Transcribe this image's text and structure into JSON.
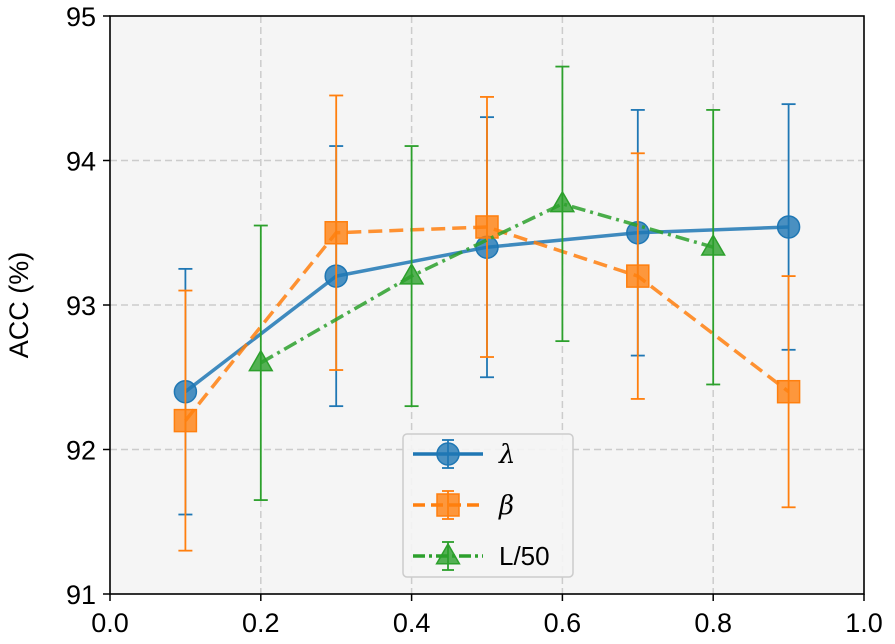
{
  "chart_data": {
    "type": "line",
    "title": "",
    "xlabel": "",
    "ylabel": "ACC (%)",
    "xlim": [
      0.0,
      1.0
    ],
    "ylim": [
      91,
      95
    ],
    "xticks": [
      "0.0",
      "0.2",
      "0.4",
      "0.6",
      "0.8",
      "1.0"
    ],
    "yticks": [
      "91",
      "92",
      "93",
      "94",
      "95"
    ],
    "grid": true,
    "legend_position": "lower-center",
    "series": [
      {
        "name": "λ",
        "italic": true,
        "color": "#1f77b4",
        "marker": "circle",
        "linestyle": "solid",
        "x": [
          0.1,
          0.3,
          0.5,
          0.7,
          0.9
        ],
        "y": [
          92.4,
          93.2,
          93.4,
          93.5,
          93.54
        ],
        "err_low": [
          91.55,
          92.3,
          92.5,
          92.65,
          92.69
        ],
        "err_high": [
          93.25,
          94.1,
          94.3,
          94.35,
          94.39
        ]
      },
      {
        "name": "β",
        "italic": true,
        "color": "#ff7f0e",
        "marker": "square",
        "linestyle": "dashed",
        "x": [
          0.1,
          0.3,
          0.5,
          0.7,
          0.9
        ],
        "y": [
          92.2,
          93.5,
          93.54,
          93.2,
          92.4
        ],
        "err_low": [
          91.3,
          92.55,
          92.64,
          92.35,
          91.6
        ],
        "err_high": [
          93.1,
          94.45,
          94.44,
          94.05,
          93.2
        ]
      },
      {
        "name": "L/50",
        "italic": false,
        "color": "#2ca02c",
        "marker": "triangle",
        "linestyle": "dashdot",
        "x": [
          0.2,
          0.4,
          0.6,
          0.8
        ],
        "y": [
          92.6,
          93.2,
          93.7,
          93.4
        ],
        "err_low": [
          91.65,
          92.3,
          92.75,
          92.45
        ],
        "err_high": [
          93.55,
          94.1,
          94.65,
          94.35
        ]
      }
    ]
  }
}
